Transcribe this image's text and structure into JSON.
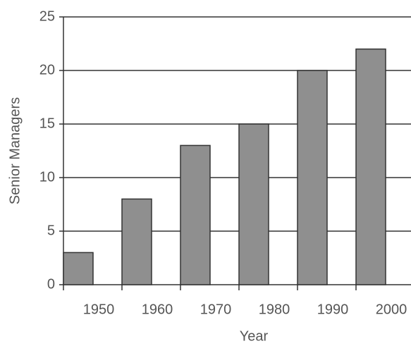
{
  "chart_data": {
    "type": "bar",
    "x_label": "Year",
    "y_label": "Senior Managers",
    "categories": [
      "1950",
      "1960",
      "1970",
      "1980",
      "1990",
      "2000"
    ],
    "values": [
      3,
      8,
      13,
      15,
      20,
      22
    ],
    "color": "#8f8f8f",
    "ylim": [
      0,
      25
    ],
    "yticks": [
      0,
      5,
      10,
      15,
      20,
      25
    ],
    "grid": true
  }
}
